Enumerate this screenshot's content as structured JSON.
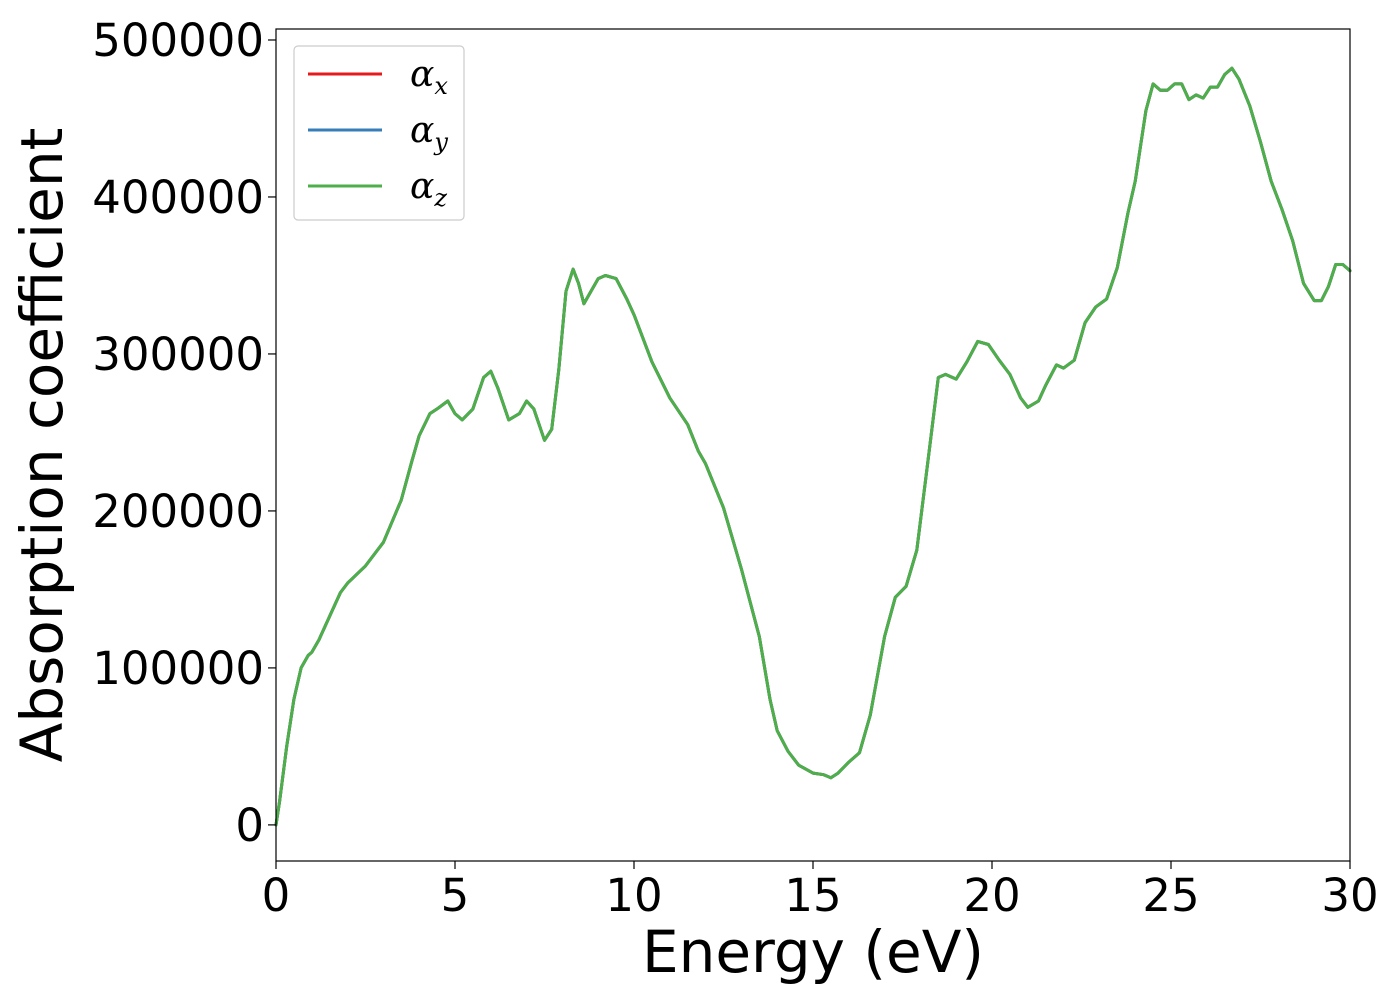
{
  "chart_data": {
    "type": "line",
    "xlabel": "Energy (eV)",
    "ylabel": "Absorption coefficient",
    "xlim": [
      0,
      30
    ],
    "ylim": [
      -23000,
      507000
    ],
    "x_ticks": [
      0,
      5,
      10,
      15,
      20,
      25,
      30
    ],
    "y_ticks": [
      0,
      100000,
      200000,
      300000,
      400000,
      500000
    ],
    "x_tick_labels": [
      "0",
      "5",
      "10",
      "15",
      "20",
      "25",
      "30"
    ],
    "y_tick_labels": [
      "0",
      "100000",
      "200000",
      "300000",
      "400000",
      "500000"
    ],
    "grid": false,
    "legend_position": "upper-left",
    "x": [
      0,
      0.1,
      0.3,
      0.5,
      0.7,
      0.9,
      1.0,
      1.2,
      1.5,
      1.8,
      2.0,
      2.5,
      3.0,
      3.5,
      3.8,
      4.0,
      4.3,
      4.5,
      4.8,
      5.0,
      5.2,
      5.5,
      5.8,
      6.0,
      6.2,
      6.5,
      6.8,
      7.0,
      7.2,
      7.5,
      7.7,
      7.9,
      8.1,
      8.3,
      8.45,
      8.6,
      8.8,
      9.0,
      9.2,
      9.5,
      9.8,
      10.0,
      10.5,
      11.0,
      11.5,
      11.8,
      12.0,
      12.5,
      13.0,
      13.5,
      13.8,
      14.0,
      14.3,
      14.6,
      15.0,
      15.3,
      15.5,
      15.7,
      16.0,
      16.3,
      16.6,
      17.0,
      17.3,
      17.6,
      17.9,
      18.2,
      18.5,
      18.7,
      19.0,
      19.3,
      19.6,
      19.9,
      20.2,
      20.5,
      20.8,
      21.0,
      21.3,
      21.5,
      21.8,
      22.0,
      22.3,
      22.6,
      22.9,
      23.2,
      23.5,
      23.8,
      24.0,
      24.3,
      24.5,
      24.7,
      24.9,
      25.1,
      25.3,
      25.5,
      25.7,
      25.9,
      26.1,
      26.3,
      26.5,
      26.7,
      26.9,
      27.2,
      27.5,
      27.8,
      28.1,
      28.4,
      28.7,
      29.0,
      29.2,
      29.4,
      29.6,
      29.8,
      30.0
    ],
    "series": [
      {
        "name": "αx",
        "name_base": "α",
        "name_sub": "x",
        "color": "#e41a1c",
        "values": [
          0,
          15000,
          50000,
          80000,
          100000,
          108000,
          110000,
          118000,
          133000,
          148000,
          154000,
          165000,
          180000,
          207000,
          232000,
          248000,
          262000,
          265000,
          270000,
          262000,
          258000,
          265000,
          285000,
          289000,
          278000,
          258000,
          262000,
          270000,
          265000,
          245000,
          252000,
          290000,
          340000,
          354000,
          345000,
          332000,
          340000,
          348000,
          350000,
          348000,
          335000,
          325000,
          295000,
          272000,
          255000,
          238000,
          230000,
          202000,
          163000,
          120000,
          80000,
          60000,
          47000,
          38000,
          33000,
          32000,
          30000,
          33000,
          40000,
          46000,
          70000,
          120000,
          145000,
          152000,
          175000,
          230000,
          285000,
          287000,
          284000,
          295000,
          308000,
          306000,
          296000,
          287000,
          272000,
          266000,
          270000,
          280000,
          293000,
          291000,
          296000,
          320000,
          330000,
          335000,
          355000,
          390000,
          410000,
          455000,
          472000,
          468000,
          468000,
          472000,
          472000,
          462000,
          465000,
          463000,
          470000,
          470000,
          478000,
          482000,
          475000,
          458000,
          435000,
          410000,
          392000,
          372000,
          345000,
          334000,
          334000,
          343000,
          357000,
          357000,
          353000
        ]
      },
      {
        "name": "αy",
        "name_base": "α",
        "name_sub": "y",
        "color": "#377eb8",
        "values": [
          0,
          15000,
          50000,
          80000,
          100000,
          108000,
          110000,
          118000,
          133000,
          148000,
          154000,
          165000,
          180000,
          207000,
          232000,
          248000,
          262000,
          265000,
          270000,
          262000,
          258000,
          265000,
          285000,
          289000,
          278000,
          258000,
          262000,
          270000,
          265000,
          245000,
          252000,
          290000,
          340000,
          354000,
          345000,
          332000,
          340000,
          348000,
          350000,
          348000,
          335000,
          325000,
          295000,
          272000,
          255000,
          238000,
          230000,
          202000,
          163000,
          120000,
          80000,
          60000,
          47000,
          38000,
          33000,
          32000,
          30000,
          33000,
          40000,
          46000,
          70000,
          120000,
          145000,
          152000,
          175000,
          230000,
          285000,
          287000,
          284000,
          295000,
          308000,
          306000,
          296000,
          287000,
          272000,
          266000,
          270000,
          280000,
          293000,
          291000,
          296000,
          320000,
          330000,
          335000,
          355000,
          390000,
          410000,
          455000,
          472000,
          468000,
          468000,
          472000,
          472000,
          462000,
          465000,
          463000,
          470000,
          470000,
          478000,
          482000,
          475000,
          458000,
          435000,
          410000,
          392000,
          372000,
          345000,
          334000,
          334000,
          343000,
          357000,
          357000,
          353000
        ]
      },
      {
        "name": "αz",
        "name_base": "α",
        "name_sub": "z",
        "color": "#4daf4a",
        "values": [
          0,
          15000,
          50000,
          80000,
          100000,
          108000,
          110000,
          118000,
          133000,
          148000,
          154000,
          165000,
          180000,
          207000,
          232000,
          248000,
          262000,
          265000,
          270000,
          262000,
          258000,
          265000,
          285000,
          289000,
          278000,
          258000,
          262000,
          270000,
          265000,
          245000,
          252000,
          290000,
          340000,
          354000,
          345000,
          332000,
          340000,
          348000,
          350000,
          348000,
          335000,
          325000,
          295000,
          272000,
          255000,
          238000,
          230000,
          202000,
          163000,
          120000,
          80000,
          60000,
          47000,
          38000,
          33000,
          32000,
          30000,
          33000,
          40000,
          46000,
          70000,
          120000,
          145000,
          152000,
          175000,
          230000,
          285000,
          287000,
          284000,
          295000,
          308000,
          306000,
          296000,
          287000,
          272000,
          266000,
          270000,
          280000,
          293000,
          291000,
          296000,
          320000,
          330000,
          335000,
          355000,
          390000,
          410000,
          455000,
          472000,
          468000,
          468000,
          472000,
          472000,
          462000,
          465000,
          463000,
          470000,
          470000,
          478000,
          482000,
          475000,
          458000,
          435000,
          410000,
          392000,
          372000,
          345000,
          334000,
          334000,
          343000,
          357000,
          357000,
          353000
        ]
      }
    ]
  }
}
